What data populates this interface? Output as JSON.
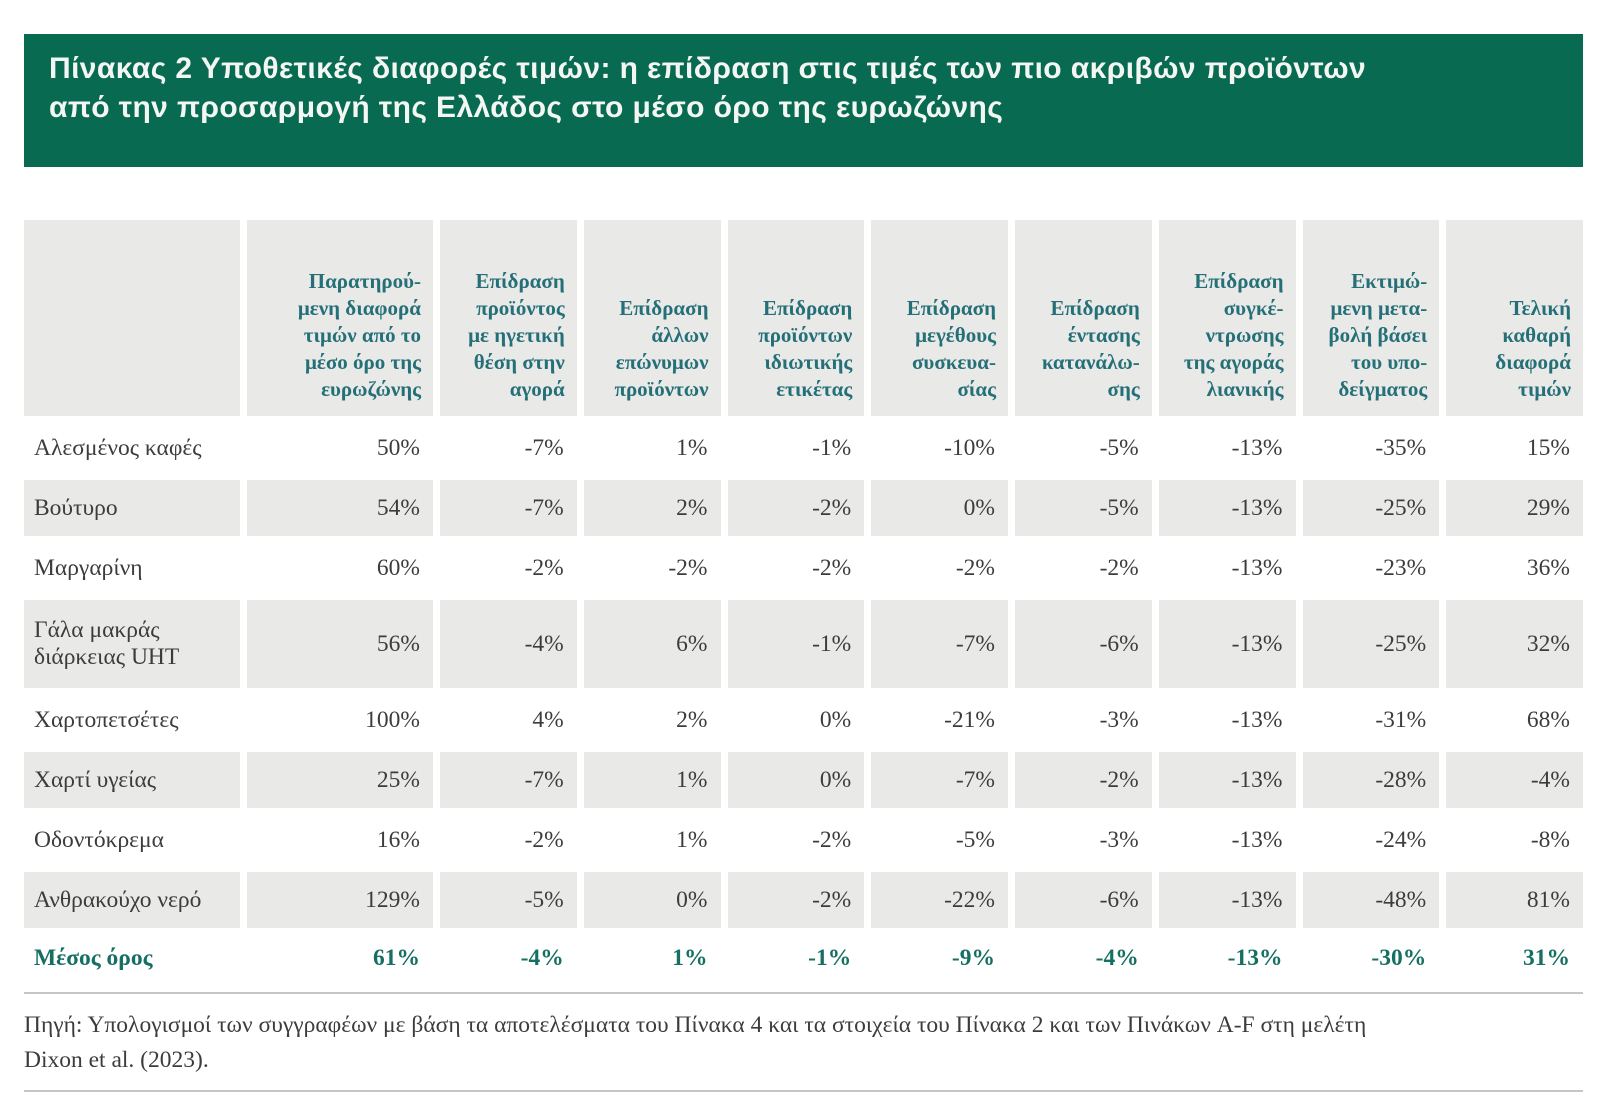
{
  "title": "Πίνακας 2 Υποθετικές διαφορές τιμών: η επίδραση στις τιμές των πιο ακριβών προϊόντων\nαπό την προσαρμογή της Ελλάδος στο μέσο όρο της ευρωζώνης",
  "colors": {
    "banner_green": "#086a50",
    "header_teal": "#257078",
    "summary_teal": "#166f63",
    "zebra_gray": "#e9e9e7",
    "body_text": "#3c3c3c"
  },
  "table": {
    "columns": [
      "Παρατηρού-\nμενη διαφορά\nτιμών από το\nμέσο όρο της\nευρωζώνης",
      "Επίδραση\nπροϊόντος\nμε ηγετική\nθέση στην\nαγορά",
      "Επίδραση\nάλλων\nεπώνυμων\nπροϊόντων",
      "Επίδραση\nπροϊόντων\nιδιωτικής\nετικέτας",
      "Επίδραση\nμεγέθους\nσυσκευα-\nσίας",
      "Επίδραση\nέντασης\nκατανάλω-\nσης",
      "Επίδραση\nσυγκέ-\nντρωσης\nτης αγοράς\nλιανικής",
      "Εκτιμώ-\nμενη μετα-\nβολή βάσει\nτου υπο-\nδείγματος",
      "Τελική\nκαθαρή\nδιαφορά\nτιμών"
    ],
    "rows": [
      {
        "label": "Αλεσμένος καφές",
        "values": [
          "50%",
          "-7%",
          "1%",
          "-1%",
          "-10%",
          "-5%",
          "-13%",
          "-35%",
          "15%"
        ]
      },
      {
        "label": "Βούτυρο",
        "values": [
          "54%",
          "-7%",
          "2%",
          "-2%",
          "0%",
          "-5%",
          "-13%",
          "-25%",
          "29%"
        ]
      },
      {
        "label": "Μαργαρίνη",
        "values": [
          "60%",
          "-2%",
          "-2%",
          "-2%",
          "-2%",
          "-2%",
          "-13%",
          "-23%",
          "36%"
        ]
      },
      {
        "label": "Γάλα μακράς\nδιάρκειας UHT",
        "values": [
          "56%",
          "-4%",
          "6%",
          "-1%",
          "-7%",
          "-6%",
          "-13%",
          "-25%",
          "32%"
        ]
      },
      {
        "label": "Χαρτοπετσέτες",
        "values": [
          "100%",
          "4%",
          "2%",
          "0%",
          "-21%",
          "-3%",
          "-13%",
          "-31%",
          "68%"
        ]
      },
      {
        "label": "Χαρτί υγείας",
        "values": [
          "25%",
          "-7%",
          "1%",
          "0%",
          "-7%",
          "-2%",
          "-13%",
          "-28%",
          "-4%"
        ]
      },
      {
        "label": "Οδοντόκρεμα",
        "values": [
          "16%",
          "-2%",
          "1%",
          "-2%",
          "-5%",
          "-3%",
          "-13%",
          "-24%",
          "-8%"
        ]
      },
      {
        "label": "Ανθρακούχο νερό",
        "values": [
          "129%",
          "-5%",
          "0%",
          "-2%",
          "-22%",
          "-6%",
          "-13%",
          "-48%",
          "81%"
        ]
      }
    ],
    "summary": {
      "label": "Μέσος όρος",
      "values": [
        "61%",
        "-4%",
        "1%",
        "-1%",
        "-9%",
        "-4%",
        "-13%",
        "-30%",
        "31%"
      ]
    }
  },
  "source_note": "Πηγή: Υπολογισμοί των συγγραφέων με βάση τα αποτελέσματα του Πίνακα 4 και τα στοιχεία του Πίνακα 2 και των Πινάκων A-F στη μελέτη\nDixon et al. (2023)."
}
